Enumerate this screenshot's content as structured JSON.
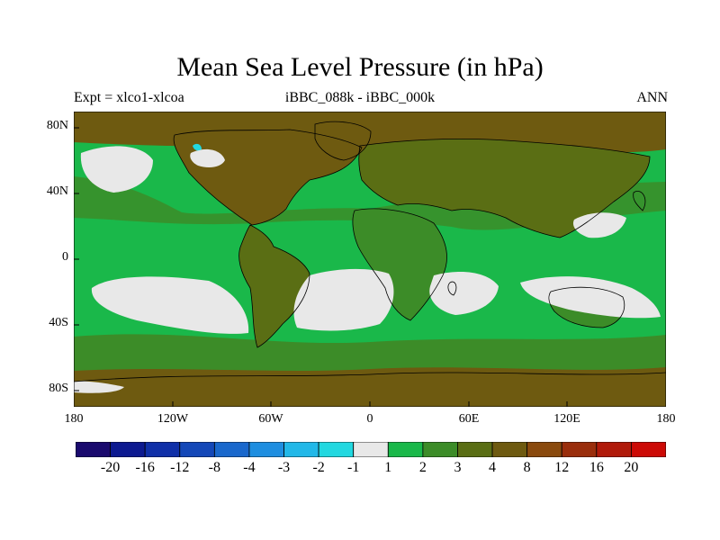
{
  "header": {
    "title": "Mean Sea Level Pressure (in hPa)",
    "left": "Expt = xlco1-xlcoa",
    "center": "iBBC_088k - iBBC_000k",
    "right": "ANN"
  },
  "axes": {
    "y_ticks": [
      "80N",
      "40N",
      "0",
      "40S",
      "80S"
    ],
    "x_ticks": [
      "180",
      "120W",
      "60W",
      "0",
      "60E",
      "120E",
      "180"
    ]
  },
  "colorbar": {
    "colors": [
      "#1a0a6e",
      "#0d1a90",
      "#1030a8",
      "#1448b8",
      "#1a68cc",
      "#1e8ee0",
      "#22b8e8",
      "#22d8e0",
      "#e8e8e8",
      "#1ab84a",
      "#3c8c28",
      "#5a6e14",
      "#6e5a10",
      "#8a4a0e",
      "#9a2e0c",
      "#b01a0a",
      "#cc0a06"
    ],
    "labels": [
      "-20",
      "-16",
      "-12",
      "-8",
      "-4",
      "-3",
      "-2",
      "-1",
      "1",
      "2",
      "3",
      "4",
      "8",
      "12",
      "16",
      "20"
    ]
  },
  "map_colors": {
    "ocean": "#1ab84a",
    "positive_mid": "#3c8c28",
    "positive_high": "#6e5a10",
    "near_zero": "#e8e8e8",
    "cyan": "#22d8e0",
    "coast": "#000000"
  }
}
